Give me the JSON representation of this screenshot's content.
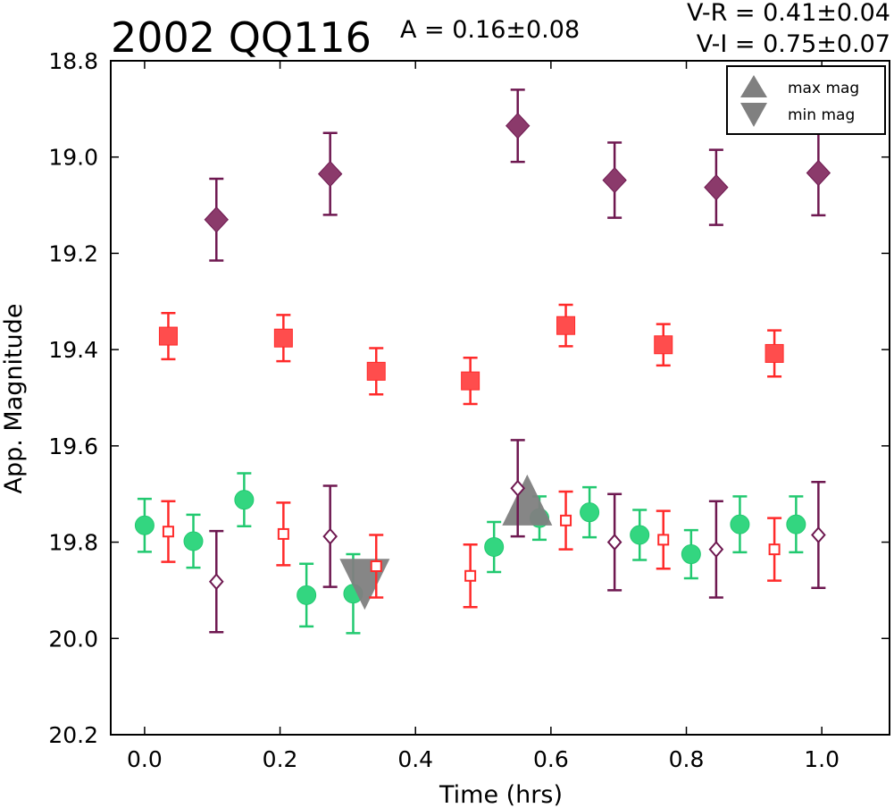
{
  "chart_data": {
    "type": "scatter",
    "title": "2002 QQ116",
    "amplitude_label": "A  = 0.16±0.08",
    "color_indices": [
      "V-R = 0.41±0.04",
      "V-I  = 0.75±0.07"
    ],
    "xlabel": "Time (hrs)",
    "ylabel": "App. Magnitude",
    "xlim": [
      -0.05,
      1.1
    ],
    "ylim": [
      20.2,
      18.8
    ],
    "y_inverted": true,
    "grid": false,
    "x_ticks": [
      0.0,
      0.2,
      0.4,
      0.6,
      0.8,
      1.0
    ],
    "x_tick_labels": [
      "0.0",
      "0.2",
      "0.4",
      "0.6",
      "0.8",
      "1.0"
    ],
    "y_ticks": [
      18.8,
      19.0,
      19.2,
      19.4,
      19.6,
      19.8,
      20.0,
      20.2
    ],
    "y_tick_labels": [
      "18.8",
      "19.0",
      "19.2",
      "19.4",
      "19.6",
      "19.8",
      "20.0",
      "20.2"
    ],
    "legend": {
      "placement": "top-right",
      "entries": [
        {
          "label": "max mag",
          "marker": "triangle-up",
          "color": "#808080"
        },
        {
          "label": "min mag",
          "marker": "triangle-down",
          "color": "#808080"
        }
      ]
    },
    "series": [
      {
        "marker": "diamond-filled",
        "color": "#8b3a6b",
        "edge_color": "#6e1850",
        "points": [
          {
            "x": 0.106,
            "y": 19.13,
            "err": 0.085
          },
          {
            "x": 0.274,
            "y": 19.035,
            "err": 0.085
          },
          {
            "x": 0.551,
            "y": 18.935,
            "err": 0.075
          },
          {
            "x": 0.694,
            "y": 19.048,
            "err": 0.078
          },
          {
            "x": 0.844,
            "y": 19.063,
            "err": 0.078
          },
          {
            "x": 0.995,
            "y": 19.033,
            "err": 0.088
          }
        ]
      },
      {
        "marker": "square-filled",
        "color": "#ff4d4d",
        "edge_color": "#ff2a2a",
        "points": [
          {
            "x": 0.035,
            "y": 19.372,
            "err": 0.048
          },
          {
            "x": 0.205,
            "y": 19.376,
            "err": 0.048
          },
          {
            "x": 0.342,
            "y": 19.445,
            "err": 0.048
          },
          {
            "x": 0.481,
            "y": 19.465,
            "err": 0.048
          },
          {
            "x": 0.622,
            "y": 19.35,
            "err": 0.043
          },
          {
            "x": 0.766,
            "y": 19.39,
            "err": 0.043
          },
          {
            "x": 0.93,
            "y": 19.408,
            "err": 0.048
          }
        ]
      },
      {
        "marker": "circle-filled",
        "color": "#33d680",
        "edge_color": "#22c970",
        "points": [
          {
            "x": 0.0,
            "y": 19.765,
            "err": 0.055
          },
          {
            "x": 0.072,
            "y": 19.798,
            "err": 0.055
          },
          {
            "x": 0.147,
            "y": 19.712,
            "err": 0.055
          },
          {
            "x": 0.239,
            "y": 19.91,
            "err": 0.065
          },
          {
            "x": 0.308,
            "y": 19.907,
            "err": 0.082
          },
          {
            "x": 0.516,
            "y": 19.81,
            "err": 0.052
          },
          {
            "x": 0.583,
            "y": 19.75,
            "err": 0.045
          },
          {
            "x": 0.657,
            "y": 19.738,
            "err": 0.052
          },
          {
            "x": 0.731,
            "y": 19.785,
            "err": 0.052
          },
          {
            "x": 0.807,
            "y": 19.825,
            "err": 0.05
          },
          {
            "x": 0.879,
            "y": 19.763,
            "err": 0.058
          },
          {
            "x": 0.962,
            "y": 19.763,
            "err": 0.058
          }
        ]
      },
      {
        "marker": "square-open",
        "color": "#ff2a2a",
        "edge_color": "#ff2a2a",
        "points": [
          {
            "x": 0.035,
            "y": 19.778,
            "err": 0.063
          },
          {
            "x": 0.205,
            "y": 19.783,
            "err": 0.065
          },
          {
            "x": 0.342,
            "y": 19.85,
            "err": 0.065
          },
          {
            "x": 0.481,
            "y": 19.87,
            "err": 0.065
          },
          {
            "x": 0.622,
            "y": 19.755,
            "err": 0.06
          },
          {
            "x": 0.766,
            "y": 19.795,
            "err": 0.06
          },
          {
            "x": 0.93,
            "y": 19.815,
            "err": 0.065
          }
        ]
      },
      {
        "marker": "diamond-open",
        "color": "#6e1850",
        "edge_color": "#6e1850",
        "points": [
          {
            "x": 0.106,
            "y": 19.882,
            "err": 0.105
          },
          {
            "x": 0.274,
            "y": 19.788,
            "err": 0.105
          },
          {
            "x": 0.551,
            "y": 19.688,
            "err": 0.1
          },
          {
            "x": 0.694,
            "y": 19.8,
            "err": 0.1
          },
          {
            "x": 0.844,
            "y": 19.815,
            "err": 0.1
          },
          {
            "x": 0.995,
            "y": 19.785,
            "err": 0.11
          }
        ]
      }
    ],
    "extrema_markers": [
      {
        "label": "max mag",
        "marker": "triangle-up",
        "x": 0.565,
        "y": 19.73,
        "color": "#808080"
      },
      {
        "label": "min mag",
        "marker": "triangle-down",
        "x": 0.325,
        "y": 19.87,
        "color": "#808080"
      }
    ]
  }
}
